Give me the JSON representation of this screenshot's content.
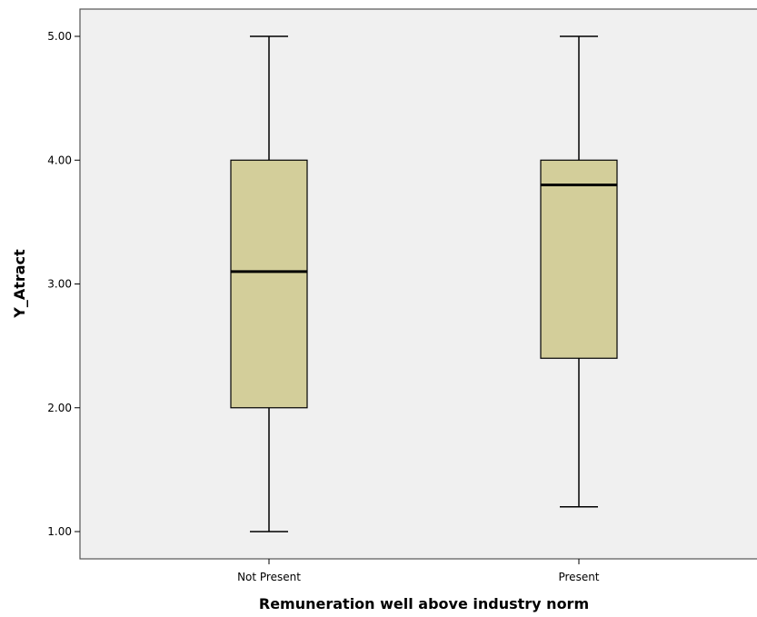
{
  "chart_data": {
    "type": "boxplot",
    "xlabel": "Remuneration well above industry norm",
    "ylabel": "Y_Atract",
    "categories": [
      "Not Present",
      "Present"
    ],
    "yticks": [
      "1.00",
      "2.00",
      "3.00",
      "4.00",
      "5.00"
    ],
    "ylim": [
      0.8,
      5.2
    ],
    "boxes": [
      {
        "category": "Not Present",
        "min": 1.0,
        "q1": 2.0,
        "median": 3.1,
        "q3": 4.0,
        "max": 5.0
      },
      {
        "category": "Present",
        "min": 1.2,
        "q1": 2.4,
        "median": 3.8,
        "q3": 4.0,
        "max": 5.0
      }
    ],
    "grid": false,
    "legend": "none",
    "colors": {
      "plot_background": "#F0F0F0",
      "box_fill": "#D3CE9A",
      "stroke": "#000000"
    }
  }
}
